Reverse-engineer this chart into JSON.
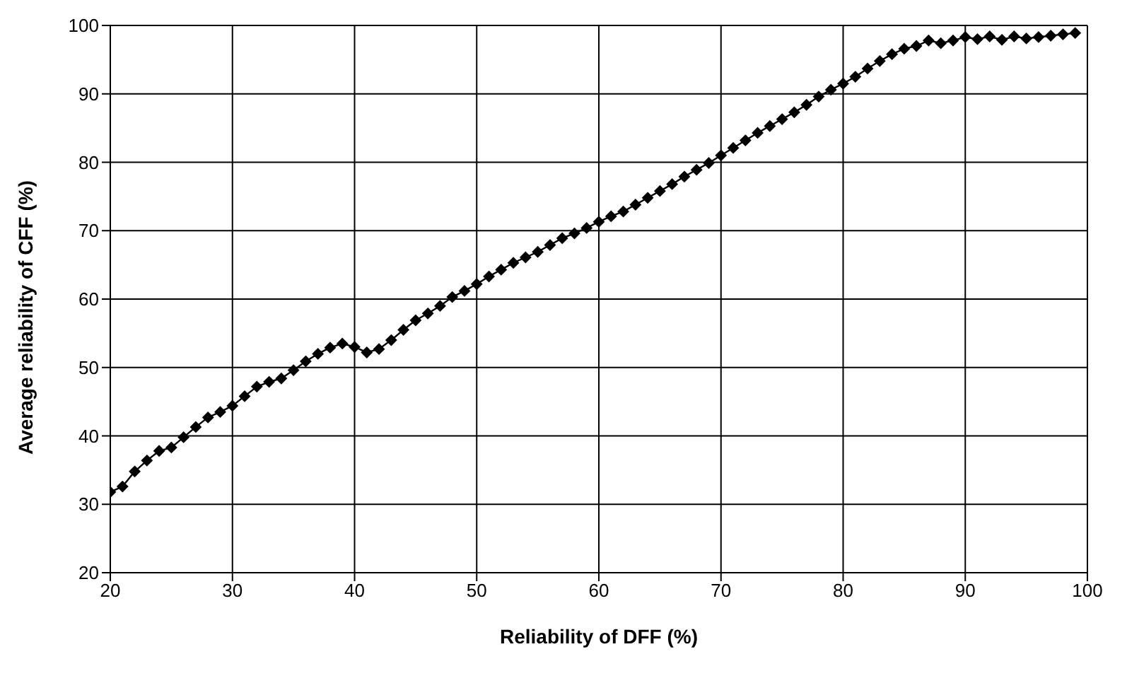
{
  "chart_data": {
    "type": "line",
    "xlabel": "Reliability of DFF (%)",
    "ylabel": "Average reliability of CFF (%)",
    "x": [
      20,
      21,
      22,
      23,
      24,
      25,
      26,
      27,
      28,
      29,
      30,
      31,
      32,
      33,
      34,
      35,
      36,
      37,
      38,
      39,
      40,
      41,
      42,
      43,
      44,
      45,
      46,
      47,
      48,
      49,
      50,
      51,
      52,
      53,
      54,
      55,
      56,
      57,
      58,
      59,
      60,
      61,
      62,
      63,
      64,
      65,
      66,
      67,
      68,
      69,
      70,
      71,
      72,
      73,
      74,
      75,
      76,
      77,
      78,
      79,
      80,
      81,
      82,
      83,
      84,
      85,
      86,
      87,
      88,
      89,
      90,
      91,
      92,
      93,
      94,
      95,
      96,
      97,
      98,
      99
    ],
    "series": [
      {
        "color": "#000000",
        "values": [
          31.8,
          32.6,
          34.8,
          36.4,
          37.8,
          38.3,
          39.8,
          41.3,
          42.7,
          43.5,
          44.4,
          45.8,
          47.2,
          47.9,
          48.4,
          49.6,
          50.9,
          52.0,
          52.9,
          53.5,
          53.0,
          52.2,
          52.7,
          54.0,
          55.5,
          56.9,
          57.9,
          59.0,
          60.3,
          61.2,
          62.2,
          63.3,
          64.3,
          65.3,
          66.1,
          66.9,
          67.9,
          68.9,
          69.6,
          70.4,
          71.3,
          72.1,
          72.8,
          73.8,
          74.8,
          75.8,
          76.8,
          77.9,
          78.9,
          79.9,
          81.0,
          82.1,
          83.2,
          84.3,
          85.3,
          86.3,
          87.3,
          88.4,
          89.6,
          90.6,
          91.5,
          92.5,
          93.7,
          94.8,
          95.8,
          96.6,
          97.0,
          97.8,
          97.4,
          97.8,
          98.3,
          98.0,
          98.4,
          97.9,
          98.4,
          98.1,
          98.3,
          98.5,
          98.7,
          98.9
        ]
      }
    ],
    "xlim": [
      20,
      100
    ],
    "xticks": [
      20,
      30,
      40,
      50,
      60,
      70,
      80,
      90,
      100
    ],
    "ylim": [
      20,
      100
    ],
    "yticks": [
      20,
      30,
      40,
      50,
      60,
      70,
      80,
      90,
      100
    ],
    "grid": true,
    "legend": false,
    "marker": "diamond",
    "line_style": "solid"
  }
}
